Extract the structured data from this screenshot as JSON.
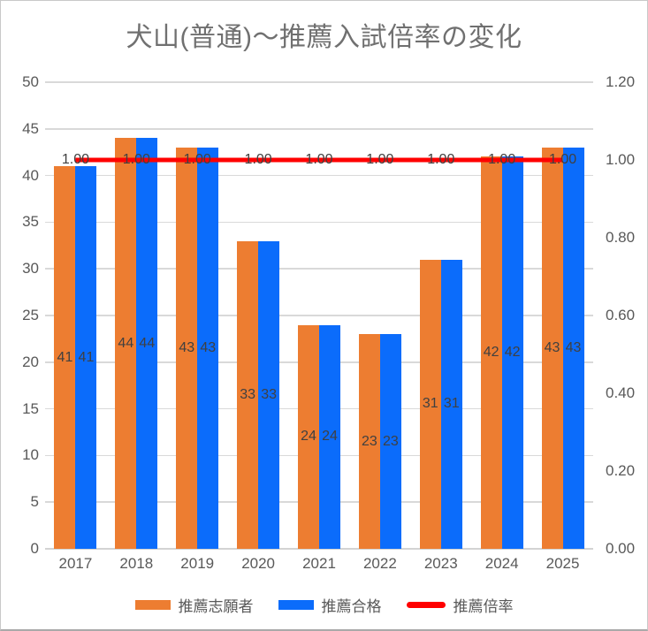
{
  "title": "犬山(普通)〜推薦入試倍率の変化",
  "chart_data": {
    "type": "bar+line",
    "categories": [
      "2017",
      "2018",
      "2019",
      "2020",
      "2021",
      "2022",
      "2023",
      "2024",
      "2025"
    ],
    "series": [
      {
        "name": "推薦志願者",
        "type": "bar",
        "axis": "left",
        "color": "#ED7D31",
        "values": [
          41,
          44,
          43,
          33,
          24,
          23,
          31,
          42,
          43
        ],
        "data_labels": [
          "41",
          "44",
          "43",
          "33",
          "24",
          "23",
          "31",
          "42",
          "43"
        ]
      },
      {
        "name": "推薦合格",
        "type": "bar",
        "axis": "left",
        "color": "#0B6CFB",
        "values": [
          41,
          44,
          43,
          33,
          24,
          23,
          31,
          42,
          43
        ],
        "data_labels": [
          "41",
          "44",
          "43",
          "33",
          "24",
          "23",
          "31",
          "42",
          "43"
        ]
      },
      {
        "name": "推薦倍率",
        "type": "line",
        "axis": "right",
        "color": "#FF0000",
        "values": [
          1.0,
          1.0,
          1.0,
          1.0,
          1.0,
          1.0,
          1.0,
          1.0,
          1.0
        ],
        "data_labels": [
          "1.00",
          "1.00",
          "1.00",
          "1.00",
          "1.00",
          "1.00",
          "1.00",
          "1.00",
          "1.00"
        ]
      }
    ],
    "left_axis": {
      "min": 0,
      "max": 50,
      "step": 5,
      "tick_labels": [
        "0",
        "5",
        "10",
        "15",
        "20",
        "25",
        "30",
        "35",
        "40",
        "45",
        "50"
      ]
    },
    "right_axis": {
      "min": 0,
      "max": 1.2,
      "step": 0.2,
      "tick_labels": [
        "0.00",
        "0.20",
        "0.40",
        "0.60",
        "0.80",
        "1.00",
        "1.20"
      ]
    },
    "grid": "horizontal",
    "legend_position": "bottom",
    "styles": {
      "grid_color": "#D9D9D9",
      "axis_text_color": "#595959",
      "data_label_color": "#404040",
      "title_color": "#707070",
      "background": "#FFFFFF"
    }
  }
}
